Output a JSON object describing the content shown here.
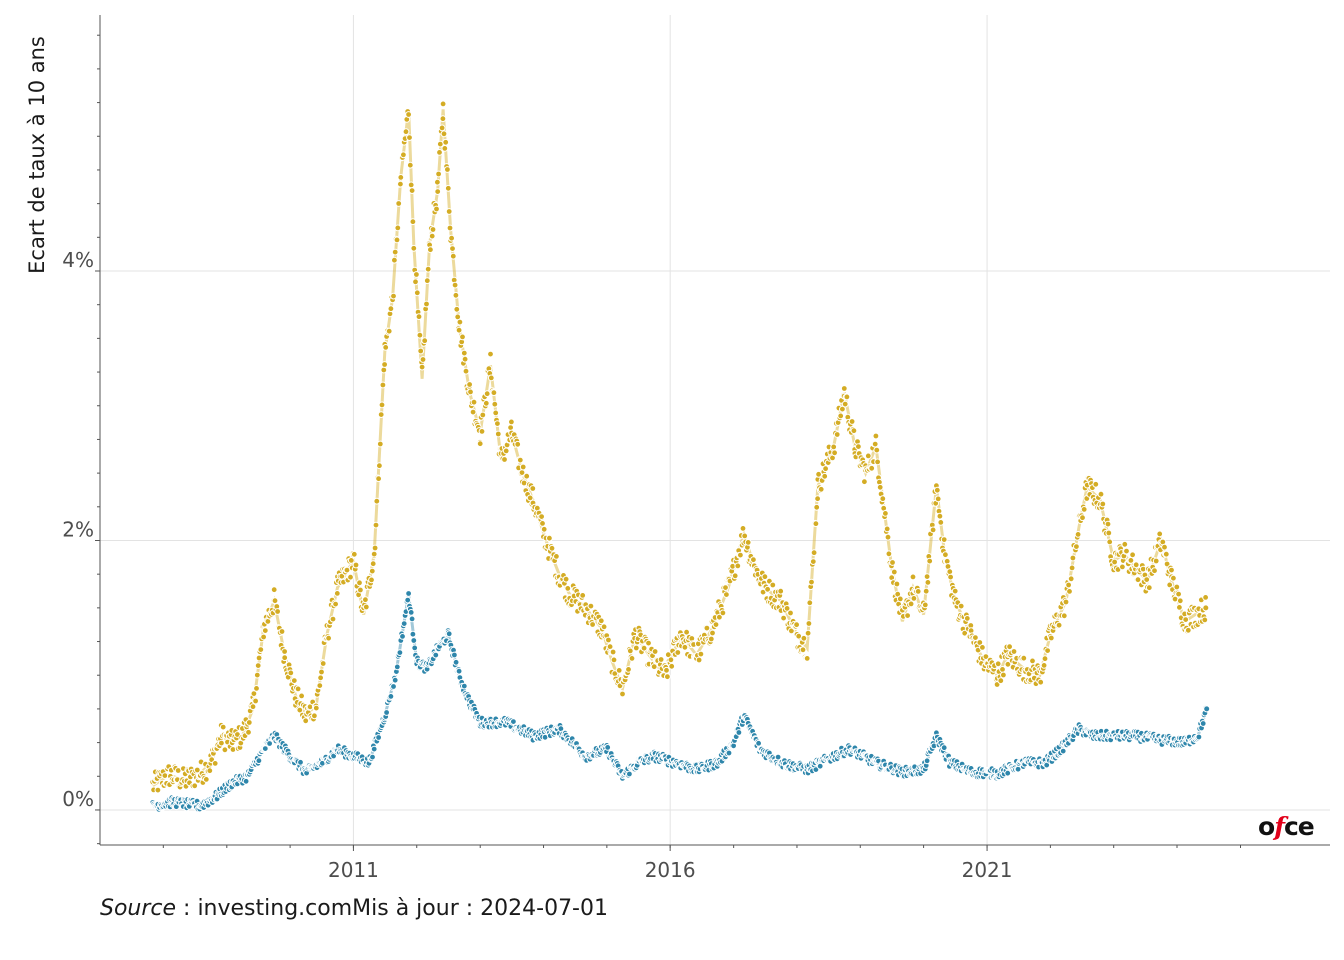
{
  "chart_data": {
    "type": "scatter",
    "title": "",
    "xlabel": "",
    "ylabel": "Ecart de taux à 10 ans",
    "x_ticks": [
      "2011",
      "2016",
      "2021"
    ],
    "y_ticks": [
      "0%",
      "2%",
      "4%"
    ],
    "xlim": [
      "2007-01-01",
      "2026-06-01"
    ],
    "ylim": [
      -0.26,
      5.9
    ],
    "grid": true,
    "legend": "none",
    "series": [
      {
        "color": "#D4AC24",
        "points": [
          [
            "2007-11-01",
            0.18
          ],
          [
            "2008-02-01",
            0.26
          ],
          [
            "2008-05-01",
            0.22
          ],
          [
            "2008-08-01",
            0.27
          ],
          [
            "2008-10-01",
            0.35
          ],
          [
            "2008-12-01",
            0.55
          ],
          [
            "2009-02-01",
            0.5
          ],
          [
            "2009-04-01",
            0.55
          ],
          [
            "2009-06-01",
            0.75
          ],
          [
            "2009-08-01",
            1.35
          ],
          [
            "2009-10-01",
            1.55
          ],
          [
            "2009-12-01",
            1.15
          ],
          [
            "2010-02-01",
            0.85
          ],
          [
            "2010-04-01",
            0.7
          ],
          [
            "2010-06-01",
            0.78
          ],
          [
            "2010-08-01",
            1.3
          ],
          [
            "2010-10-01",
            1.65
          ],
          [
            "2011-01-01",
            1.85
          ],
          [
            "2011-03-01",
            1.45
          ],
          [
            "2011-05-01",
            1.9
          ],
          [
            "2011-07-01",
            3.4
          ],
          [
            "2011-08-15",
            3.8
          ],
          [
            "2011-10-01",
            4.7
          ],
          [
            "2011-11-15",
            5.2
          ],
          [
            "2011-12-15",
            4.2
          ],
          [
            "2012-02-01",
            3.2
          ],
          [
            "2012-03-15",
            4.2
          ],
          [
            "2012-05-01",
            4.6
          ],
          [
            "2012-06-01",
            5.2
          ],
          [
            "2012-07-15",
            4.3
          ],
          [
            "2012-09-01",
            3.6
          ],
          [
            "2012-11-01",
            3.1
          ],
          [
            "2013-01-01",
            2.8
          ],
          [
            "2013-03-01",
            3.3
          ],
          [
            "2013-05-01",
            2.6
          ],
          [
            "2013-07-01",
            2.8
          ],
          [
            "2013-09-01",
            2.5
          ],
          [
            "2013-11-01",
            2.3
          ],
          [
            "2014-01-15",
            2.0
          ],
          [
            "2014-04-01",
            1.75
          ],
          [
            "2014-06-01",
            1.6
          ],
          [
            "2014-09-01",
            1.5
          ],
          [
            "2014-12-01",
            1.35
          ],
          [
            "2015-02-01",
            1.1
          ],
          [
            "2015-04-01",
            0.9
          ],
          [
            "2015-06-15",
            1.3
          ],
          [
            "2015-09-01",
            1.15
          ],
          [
            "2015-12-01",
            1.0
          ],
          [
            "2016-03-01",
            1.3
          ],
          [
            "2016-06-01",
            1.15
          ],
          [
            "2016-09-01",
            1.35
          ],
          [
            "2016-12-01",
            1.65
          ],
          [
            "2017-03-01",
            2.05
          ],
          [
            "2017-05-01",
            1.8
          ],
          [
            "2017-07-01",
            1.65
          ],
          [
            "2017-10-01",
            1.55
          ],
          [
            "2018-01-01",
            1.3
          ],
          [
            "2018-03-01",
            1.2
          ],
          [
            "2018-05-01",
            2.4
          ],
          [
            "2018-08-01",
            2.7
          ],
          [
            "2018-10-01",
            3.1
          ],
          [
            "2018-12-01",
            2.7
          ],
          [
            "2019-02-01",
            2.5
          ],
          [
            "2019-04-01",
            2.7
          ],
          [
            "2019-07-01",
            1.8
          ],
          [
            "2019-09-01",
            1.4
          ],
          [
            "2019-11-01",
            1.65
          ],
          [
            "2020-01-01",
            1.45
          ],
          [
            "2020-03-15",
            2.4
          ],
          [
            "2020-05-01",
            1.9
          ],
          [
            "2020-07-01",
            1.55
          ],
          [
            "2020-10-01",
            1.3
          ],
          [
            "2020-12-15",
            1.1
          ],
          [
            "2021-03-01",
            1.0
          ],
          [
            "2021-05-01",
            1.15
          ],
          [
            "2021-08-01",
            1.05
          ],
          [
            "2021-11-01",
            1.0
          ],
          [
            "2022-01-01",
            1.3
          ],
          [
            "2022-04-01",
            1.55
          ],
          [
            "2022-06-15",
            2.1
          ],
          [
            "2022-08-01",
            2.4
          ],
          [
            "2022-10-15",
            2.3
          ],
          [
            "2023-01-01",
            1.85
          ],
          [
            "2023-03-01",
            1.9
          ],
          [
            "2023-05-01",
            1.8
          ],
          [
            "2023-07-15",
            1.7
          ],
          [
            "2023-10-01",
            2.0
          ],
          [
            "2023-12-01",
            1.7
          ],
          [
            "2024-02-15",
            1.4
          ],
          [
            "2024-04-15",
            1.45
          ],
          [
            "2024-06-15",
            1.5
          ]
        ]
      },
      {
        "color": "#2E86AB",
        "points": [
          [
            "2007-11-01",
            0.03
          ],
          [
            "2008-03-01",
            0.06
          ],
          [
            "2008-08-01",
            0.03
          ],
          [
            "2008-11-01",
            0.1
          ],
          [
            "2009-02-01",
            0.2
          ],
          [
            "2009-05-01",
            0.25
          ],
          [
            "2009-08-01",
            0.45
          ],
          [
            "2009-10-01",
            0.55
          ],
          [
            "2010-01-01",
            0.4
          ],
          [
            "2010-04-01",
            0.28
          ],
          [
            "2010-07-01",
            0.35
          ],
          [
            "2010-10-01",
            0.45
          ],
          [
            "2011-01-01",
            0.4
          ],
          [
            "2011-04-01",
            0.35
          ],
          [
            "2011-07-01",
            0.7
          ],
          [
            "2011-09-01",
            1.0
          ],
          [
            "2011-11-15",
            1.6
          ],
          [
            "2012-01-01",
            1.1
          ],
          [
            "2012-03-01",
            1.05
          ],
          [
            "2012-05-01",
            1.2
          ],
          [
            "2012-07-01",
            1.3
          ],
          [
            "2012-09-01",
            1.0
          ],
          [
            "2012-11-01",
            0.8
          ],
          [
            "2013-01-01",
            0.65
          ],
          [
            "2013-06-01",
            0.65
          ],
          [
            "2013-11-01",
            0.55
          ],
          [
            "2014-04-01",
            0.6
          ],
          [
            "2014-09-01",
            0.4
          ],
          [
            "2015-01-01",
            0.45
          ],
          [
            "2015-04-01",
            0.25
          ],
          [
            "2015-07-01",
            0.35
          ],
          [
            "2015-10-01",
            0.4
          ],
          [
            "2016-02-01",
            0.35
          ],
          [
            "2016-06-01",
            0.3
          ],
          [
            "2016-10-01",
            0.35
          ],
          [
            "2017-01-01",
            0.5
          ],
          [
            "2017-03-01",
            0.7
          ],
          [
            "2017-06-01",
            0.45
          ],
          [
            "2017-10-01",
            0.35
          ],
          [
            "2018-03-01",
            0.3
          ],
          [
            "2018-08-01",
            0.4
          ],
          [
            "2018-11-01",
            0.45
          ],
          [
            "2019-04-01",
            0.35
          ],
          [
            "2019-09-01",
            0.28
          ],
          [
            "2020-01-01",
            0.3
          ],
          [
            "2020-03-15",
            0.55
          ],
          [
            "2020-06-01",
            0.35
          ],
          [
            "2020-10-01",
            0.28
          ],
          [
            "2021-03-01",
            0.27
          ],
          [
            "2021-08-01",
            0.35
          ],
          [
            "2021-12-01",
            0.35
          ],
          [
            "2022-03-01",
            0.45
          ],
          [
            "2022-06-15",
            0.6
          ],
          [
            "2022-09-01",
            0.55
          ],
          [
            "2023-01-01",
            0.55
          ],
          [
            "2023-05-01",
            0.55
          ],
          [
            "2023-10-01",
            0.52
          ],
          [
            "2024-02-15",
            0.5
          ],
          [
            "2024-05-01",
            0.55
          ],
          [
            "2024-06-20",
            0.75
          ]
        ]
      }
    ]
  },
  "footer": {
    "source_label": "Source",
    "source_text": " : investing.com",
    "updated_text": "Mis à jour : 2024-07-01"
  },
  "logo": {
    "part1": "o",
    "part2": "f",
    "part3": "ce"
  }
}
